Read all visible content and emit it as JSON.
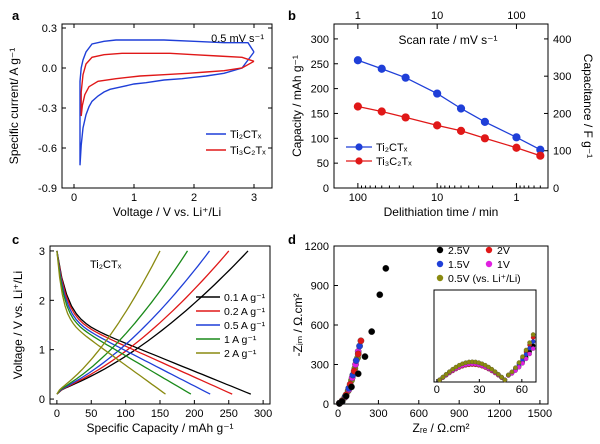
{
  "chart_data": [
    {
      "panel": "a",
      "type": "line",
      "annotation": "0.5 mV s⁻¹",
      "xlabel": "Voltage / V vs. Li⁺/Li",
      "ylabel": "Specific current/ A g⁻¹",
      "xlim": [
        -0.2,
        3.3
      ],
      "ylim": [
        -0.9,
        0.33
      ],
      "xticks": [
        0,
        1,
        2,
        3
      ],
      "yticks": [
        -0.9,
        -0.6,
        -0.3,
        0.0,
        0.3
      ],
      "ytick_labels": [
        "-0.9",
        "-0.6",
        "-0.3",
        "0.0",
        "0.3"
      ],
      "legend_position": "lower-right",
      "series": [
        {
          "name": "Ti₂CTₓ",
          "color": "#1f3fd8",
          "x": [
            3.0,
            2.8,
            2.5,
            2.2,
            2.0,
            1.8,
            1.5,
            1.2,
            1.0,
            0.8,
            0.6,
            0.5,
            0.4,
            0.3,
            0.25,
            0.2,
            0.15,
            0.12,
            0.1,
            0.1,
            0.12,
            0.15,
            0.2,
            0.3,
            0.5,
            0.7,
            1.0,
            1.5,
            2.0,
            2.5,
            2.9,
            3.0
          ],
          "y": [
            0.12,
            0.0,
            -0.04,
            -0.06,
            -0.07,
            -0.08,
            -0.09,
            -0.11,
            -0.12,
            -0.14,
            -0.16,
            -0.18,
            -0.21,
            -0.25,
            -0.29,
            -0.35,
            -0.45,
            -0.58,
            -0.73,
            -0.1,
            0.0,
            0.06,
            0.12,
            0.18,
            0.2,
            0.21,
            0.21,
            0.21,
            0.2,
            0.19,
            0.19,
            0.12
          ]
        },
        {
          "name": "Ti₃C₂Tₓ",
          "color": "#e01818",
          "x": [
            3.0,
            2.8,
            2.5,
            2.2,
            1.9,
            1.5,
            1.1,
            0.7,
            0.4,
            0.25,
            0.18,
            0.14,
            0.12,
            0.12,
            0.15,
            0.2,
            0.3,
            0.5,
            0.8,
            1.2,
            1.6,
            2.0,
            2.4,
            2.8,
            3.0
          ],
          "y": [
            0.05,
            0.0,
            -0.02,
            -0.03,
            -0.04,
            -0.05,
            -0.06,
            -0.08,
            -0.1,
            -0.14,
            -0.2,
            -0.28,
            -0.36,
            -0.18,
            -0.05,
            0.03,
            0.08,
            0.1,
            0.11,
            0.11,
            0.11,
            0.1,
            0.09,
            0.08,
            0.05
          ]
        }
      ]
    },
    {
      "panel": "b",
      "type": "line",
      "top_xlabel": "Scan rate / mV s⁻¹",
      "xlabel": "Delithiation time / min",
      "ylabel": "Capacity / mAh g⁻¹",
      "ylabel_right": "Capacitance / F g⁻¹",
      "x_scale": "log-reversed",
      "xticks_bottom": [
        100,
        10,
        1
      ],
      "xticks_top": [
        1,
        10,
        100
      ],
      "ylim": [
        0,
        330
      ],
      "yticks": [
        0,
        50,
        100,
        150,
        200,
        250,
        300
      ],
      "yticks_right": [
        0,
        100,
        200,
        300,
        400
      ],
      "legend_position": "lower-left",
      "series": [
        {
          "name": "Ti₂CTₓ",
          "color": "#1f3fd8",
          "x": [
            100,
            50,
            25,
            10,
            5,
            2.5,
            1,
            0.5
          ],
          "y": [
            257,
            240,
            222,
            190,
            160,
            133,
            102,
            77
          ]
        },
        {
          "name": "Ti₃C₂Tₓ",
          "color": "#e01818",
          "x": [
            100,
            50,
            25,
            10,
            5,
            2.5,
            1,
            0.5
          ],
          "y": [
            164,
            154,
            142,
            126,
            115,
            100,
            81,
            65
          ]
        }
      ]
    },
    {
      "panel": "c",
      "type": "line",
      "annotation": "Ti₂CTₓ",
      "xlabel": "Specific Capacity / mAh g⁻¹",
      "ylabel": "Voltage / V vs. Li⁺/Li",
      "xlim": [
        -10,
        310
      ],
      "ylim": [
        -0.1,
        3.1
      ],
      "xticks": [
        0,
        50,
        100,
        150,
        200,
        250,
        300
      ],
      "yticks": [
        0,
        1,
        2,
        3
      ],
      "legend_position": "right",
      "series": [
        {
          "name": "0.1 A g⁻¹",
          "color": "#000000",
          "capacity": 282,
          "charge_capacity": 278
        },
        {
          "name": "0.2 A g⁻¹",
          "color": "#e01818",
          "capacity": 255,
          "charge_capacity": 250
        },
        {
          "name": "0.5 A g⁻¹",
          "color": "#1f3fd8",
          "capacity": 223,
          "charge_capacity": 222
        },
        {
          "name": "1 A g⁻¹",
          "color": "#1a8a1a",
          "capacity": 195,
          "charge_capacity": 190
        },
        {
          "name": "2 A g⁻¹",
          "color": "#8a8a10",
          "capacity": 158,
          "charge_capacity": 150
        }
      ]
    },
    {
      "panel": "d",
      "type": "scatter",
      "xlabel": "Zᵣₑ / Ω.cm²",
      "ylabel": "-Zᵢₘ / Ω.cm²",
      "xlim": [
        -30,
        1560
      ],
      "ylim": [
        0,
        1200
      ],
      "xticks": [
        0,
        300,
        600,
        900,
        1200,
        1500
      ],
      "yticks": [
        0,
        300,
        600,
        900,
        1200
      ],
      "legend_position": "top-right",
      "series": [
        {
          "name": "2.5V",
          "color": "#000000",
          "x": [
            10,
            30,
            60,
            100,
            150,
            200,
            250,
            310,
            355
          ],
          "y": [
            5,
            20,
            60,
            130,
            230,
            360,
            550,
            830,
            1030
          ]
        },
        {
          "name": "2V",
          "color": "#e01818",
          "x": [
            10,
            30,
            60,
            90,
            120,
            150,
            170
          ],
          "y": [
            5,
            25,
            70,
            150,
            250,
            380,
            480
          ]
        },
        {
          "name": "1.5V",
          "color": "#1f3fd8",
          "x": [
            10,
            30,
            55,
            80,
            110,
            135,
            160
          ],
          "y": [
            5,
            20,
            60,
            120,
            220,
            330,
            440
          ]
        },
        {
          "name": "1V",
          "color": "#e020e0",
          "x": [
            10,
            30,
            55,
            80,
            105,
            130,
            150
          ],
          "y": [
            5,
            20,
            55,
            110,
            200,
            300,
            400
          ]
        },
        {
          "name": "0.5V (vs. Li⁺/Li)",
          "color": "#8a8a10",
          "x": [
            10,
            30,
            50,
            75,
            100,
            125,
            145
          ],
          "y": [
            5,
            18,
            50,
            100,
            180,
            270,
            350
          ]
        }
      ],
      "inset": {
        "xlim": [
          -2,
          70
        ],
        "ylim": [
          -1,
          65
        ],
        "xticks": [
          0,
          30,
          60
        ]
      }
    }
  ],
  "panels": {
    "a": {
      "letter": "a",
      "annotation": "0.5 mV s⁻¹",
      "xlabel": "Voltage / V vs. Li⁺/Li",
      "ylabel": "Specific current/ A g⁻¹"
    },
    "b": {
      "letter": "b",
      "top_xlabel": "Scan rate / mV s⁻¹",
      "xlabel": "Delithiation time / min",
      "ylabel": "Capacity / mAh g⁻¹",
      "ylabel_right": "Capacitance / F g⁻¹"
    },
    "c": {
      "letter": "c",
      "annotation": "Ti₂CTₓ",
      "xlabel": "Specific Capacity / mAh g⁻¹",
      "ylabel": "Voltage / V vs. Li⁺/Li"
    },
    "d": {
      "letter": "d",
      "xlabel": "Zᵣₑ / Ω.cm²",
      "ylabel": "-Zᵢₘ / Ω.cm²"
    }
  }
}
